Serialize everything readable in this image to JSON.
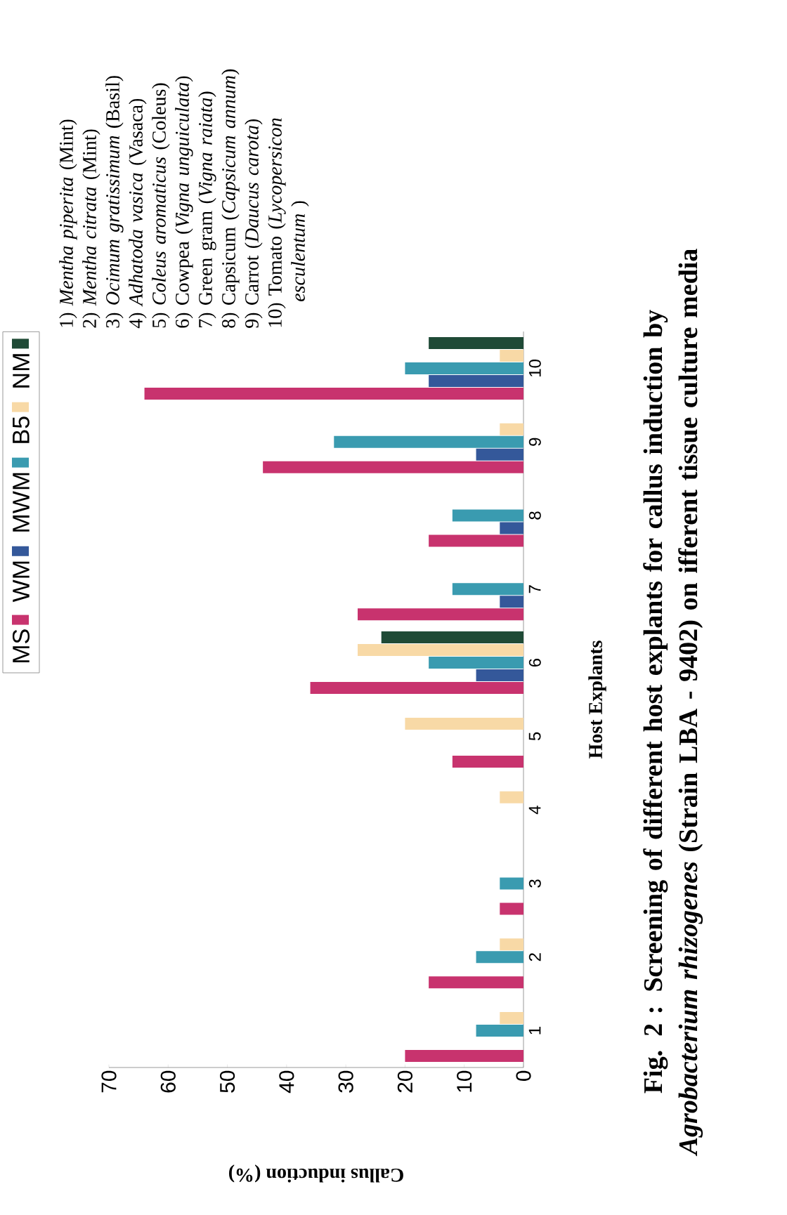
{
  "chart_data": {
    "type": "bar",
    "orientation": "horizontal",
    "title": "Fig. 2 : Screening of different host explants for callus induction by *Agrobacterium rhizogenes* (Strain LBA - 9402) on ifferent tissue culture media",
    "xlabel": "Callus induction (%)",
    "ylabel": "Host Explants",
    "categories": [
      "10",
      "9",
      "8",
      "7",
      "6",
      "5",
      "4",
      "3",
      "2",
      "1"
    ],
    "series": [
      {
        "name": "NM",
        "color": "#1f4a36",
        "values": [
          16,
          0,
          0,
          0,
          24,
          0,
          0,
          0,
          0,
          0
        ]
      },
      {
        "name": "B5",
        "color": "#f8d9a6",
        "values": [
          4,
          4,
          0,
          0,
          28,
          20,
          4,
          0,
          4,
          4
        ]
      },
      {
        "name": "MWM",
        "color": "#3a9bb0",
        "values": [
          20,
          32,
          12,
          12,
          16,
          0,
          0,
          4,
          8,
          8
        ]
      },
      {
        "name": "WM",
        "color": "#34589a",
        "values": [
          16,
          8,
          4,
          4,
          8,
          0,
          0,
          0,
          0,
          0
        ]
      },
      {
        "name": "MS",
        "color": "#c8336e",
        "values": [
          64,
          44,
          16,
          28,
          36,
          12,
          0,
          4,
          16,
          20
        ]
      }
    ],
    "xlim": [
      70,
      0
    ],
    "xticks": [
      70,
      60,
      50,
      40,
      30,
      20,
      10,
      0
    ],
    "legend": "left",
    "grid": false,
    "annotations": [
      "1) *Mentha piperita* (Mint)",
      "2) *Mentha citrata* (Mint)",
      "3) *Ocimum gratissimum* (Basil)",
      "4) *Adhatoda vasica* (Vasaca)",
      "5) *Coleus aromaticus* (Coleus)",
      "6) Cowpea (*Vigna unguiculata*)",
      "7) Green gram (*Vigna raiata*)",
      "8) Capsicum (*Capsicum annum*)",
      "9) Carrot (*Daucus carota*)",
      "10) Tomato (*Lycopersicon esculentum* )"
    ]
  }
}
